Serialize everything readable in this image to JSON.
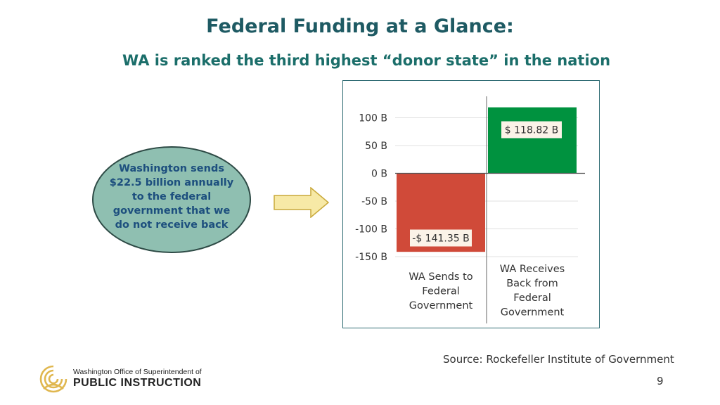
{
  "slide": {
    "title": "Federal Funding at a Glance:",
    "subtitle": "WA is ranked the third highest “donor state” in the nation",
    "callout": "Washington sends $22.5 billion annually to the federal government that we do not receive back",
    "source": "Source: Rockefeller Institute of Government",
    "page_number": "9"
  },
  "logo": {
    "line1": "Washington Office of Superintendent of",
    "line2": "PUBLIC INSTRUCTION"
  },
  "colors": {
    "title": "#1e5a63",
    "subtitle": "#1b6e6a",
    "callout_fill": "#8fbfb1",
    "arrow_fill": "#f7e9a6",
    "bar_sends": "#d04a39",
    "bar_receives": "#00923f",
    "logo_gold": "#e0b74f"
  },
  "chart_data": {
    "type": "bar",
    "categories": [
      "WA Sends to Federal Government",
      "WA Receives Back from Federal Government"
    ],
    "category_lines": [
      [
        "WA Sends to",
        "Federal",
        "Government"
      ],
      [
        "WA Receives",
        "Back from",
        "Federal",
        "Government"
      ]
    ],
    "values": [
      -141.35,
      118.82
    ],
    "data_labels": [
      "-$ 141.35 B",
      "$ 118.82 B"
    ],
    "y_ticks": [
      100,
      50,
      0,
      -50,
      -100,
      -150
    ],
    "y_tick_labels": [
      "100 B",
      "50 B",
      "0 B",
      "-50 B",
      "-100 B",
      "-150 B"
    ],
    "ylim": [
      -150,
      140
    ],
    "grid": true,
    "title": "",
    "xlabel": "",
    "ylabel": ""
  }
}
